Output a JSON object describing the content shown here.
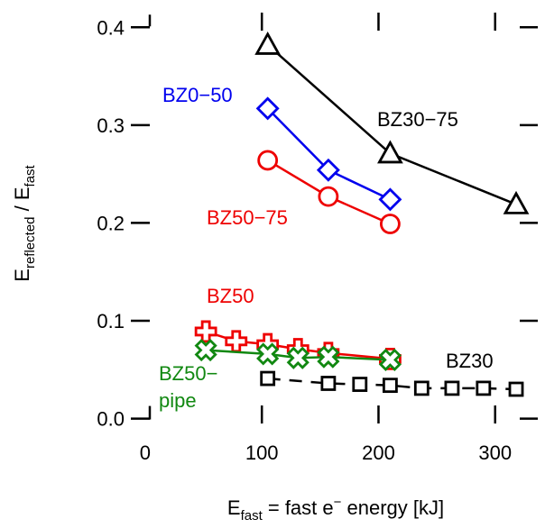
{
  "chart_data": {
    "type": "scatter",
    "xlabel": {
      "main": "E",
      "sub": "fast",
      "rest": " = fast e",
      "sup": "−",
      "tail": " energy  [kJ]"
    },
    "ylabel": {
      "main1": "E",
      "sub1": "reflected",
      "mid": " / E",
      "sub2": "fast"
    },
    "xlim": [
      -10,
      335
    ],
    "ylim": [
      -0.005,
      0.415
    ],
    "xticks": [
      {
        "value": 0,
        "label": "0"
      },
      {
        "value": 100,
        "label": "100"
      },
      {
        "value": 200,
        "label": "200"
      },
      {
        "value": 300,
        "label": "300"
      }
    ],
    "yticks": [
      {
        "value": 0.0,
        "label": "0.0"
      },
      {
        "value": 0.1,
        "label": "0.1"
      },
      {
        "value": 0.2,
        "label": "0.2"
      },
      {
        "value": 0.3,
        "label": "0.3"
      },
      {
        "value": 0.4,
        "label": "0.4"
      }
    ],
    "grid": false,
    "series": [
      {
        "name": "BZ30-75",
        "label": "BZ30−75",
        "color": "#000000",
        "marker": "triangle",
        "line": "solid",
        "x": [
          105,
          210,
          318
        ],
        "y": [
          0.382,
          0.271,
          0.219
        ]
      },
      {
        "name": "BZ0-50",
        "label": "BZ0−50",
        "color": "#0000ee",
        "marker": "diamond",
        "line": "solid",
        "x": [
          105,
          157,
          210
        ],
        "y": [
          0.317,
          0.254,
          0.224
        ]
      },
      {
        "name": "BZ50-75",
        "label": "BZ50−75",
        "color": "#ee0000",
        "marker": "circle",
        "line": "solid",
        "x": [
          105,
          157,
          210
        ],
        "y": [
          0.264,
          0.227,
          0.199
        ]
      },
      {
        "name": "BZ50",
        "label": "BZ50",
        "color": "#ee0000",
        "marker": "plus",
        "line": "solid",
        "x": [
          52,
          78,
          105,
          131,
          157,
          210
        ],
        "y": [
          0.089,
          0.079,
          0.076,
          0.071,
          0.067,
          0.061
        ]
      },
      {
        "name": "BZ50-pipe",
        "label": "BZ50−\npipe",
        "color": "#118811",
        "marker": "cross",
        "line": "solid",
        "x": [
          52,
          105,
          131,
          157,
          210
        ],
        "y": [
          0.07,
          0.066,
          0.062,
          0.063,
          0.06
        ]
      },
      {
        "name": "BZ30",
        "label": "BZ30",
        "color": "#000000",
        "marker": "square",
        "line": "dashed",
        "x": [
          105,
          157,
          184,
          210,
          237,
          263,
          290,
          318
        ],
        "y": [
          0.041,
          0.036,
          0.035,
          0.034,
          0.031,
          0.031,
          0.031,
          0.03
        ]
      }
    ]
  }
}
